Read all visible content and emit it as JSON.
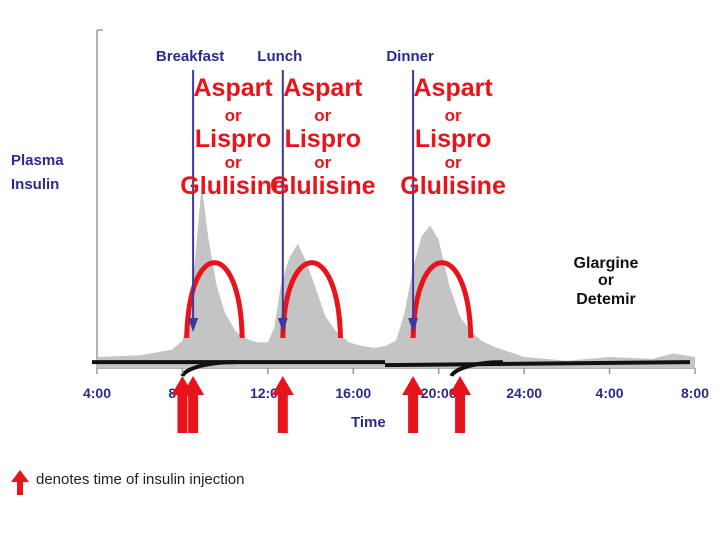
{
  "chart_data": {
    "type": "area",
    "title": "",
    "ylabel_lines": [
      "Plasma",
      "Insulin"
    ],
    "xlabel": "Time",
    "x_ticks": [
      "4:00",
      "8:00",
      "12:00",
      "16:00",
      "20:00",
      "24:00",
      "4:00",
      "8:00"
    ],
    "x_tick_hours": [
      4,
      8,
      12,
      16,
      20,
      24,
      28,
      32
    ],
    "x_range": [
      4,
      32
    ],
    "y_range": [
      0,
      1
    ],
    "physiologic_insulin_profile": {
      "x": [
        4,
        6,
        7.5,
        8,
        8.3,
        8.6,
        8.9,
        9.2,
        9.6,
        10,
        10.5,
        11,
        11.5,
        12,
        12.3,
        12.6,
        13,
        13.4,
        13.8,
        14.2,
        14.7,
        15.2,
        15.8,
        16.4,
        17,
        17.5,
        18,
        18.4,
        18.8,
        19.2,
        19.6,
        20,
        20.5,
        21,
        21.5,
        22,
        22.5,
        23,
        24,
        26,
        28,
        30,
        31,
        32
      ],
      "y": [
        0.06,
        0.07,
        0.1,
        0.15,
        0.3,
        0.6,
        1.0,
        0.72,
        0.45,
        0.3,
        0.2,
        0.16,
        0.14,
        0.14,
        0.22,
        0.45,
        0.6,
        0.68,
        0.58,
        0.45,
        0.28,
        0.2,
        0.14,
        0.12,
        0.11,
        0.12,
        0.15,
        0.3,
        0.55,
        0.72,
        0.78,
        0.7,
        0.45,
        0.28,
        0.2,
        0.15,
        0.12,
        0.1,
        0.06,
        0.04,
        0.06,
        0.05,
        0.08,
        0.06
      ]
    },
    "rapid_acting_peaks": [
      {
        "start": 8.2,
        "peak": 9.5,
        "end": 10.8,
        "height": 0.58
      },
      {
        "start": 12.7,
        "peak": 14.0,
        "end": 15.4,
        "height": 0.58
      },
      {
        "start": 18.8,
        "peak": 20.1,
        "end": 21.5,
        "height": 0.58
      }
    ],
    "basal_level": 0.032,
    "basal_onsets": [
      {
        "start": 8.0,
        "plateau": 10.5
      },
      {
        "start": 20.6,
        "plateau": 23.0
      }
    ],
    "meal_labels": [
      {
        "name": "Breakfast",
        "hour": 8.5
      },
      {
        "name": "Lunch",
        "hour": 12.7
      },
      {
        "name": "Dinner",
        "hour": 18.8
      }
    ],
    "rapid_acting_label_lines": [
      "Aspart",
      "or",
      "Lispro",
      "or",
      "Glulisine"
    ],
    "basal_label_lines": [
      "Glargine",
      "or",
      "Detemir"
    ],
    "injection_times": [
      8.0,
      8.5,
      12.7,
      18.8,
      21.0
    ],
    "legend_text": "denotes time of insulin injection",
    "colors": {
      "profile_fill": "#c4c4c4",
      "rapid_curve": "#e8141b",
      "basal_curve": "#111111",
      "meal_arrow": "#3a3a9e",
      "blue_text": "#2b2b8c",
      "injection_arrow": "#e8141b",
      "axis": "#9a9a9a"
    }
  }
}
